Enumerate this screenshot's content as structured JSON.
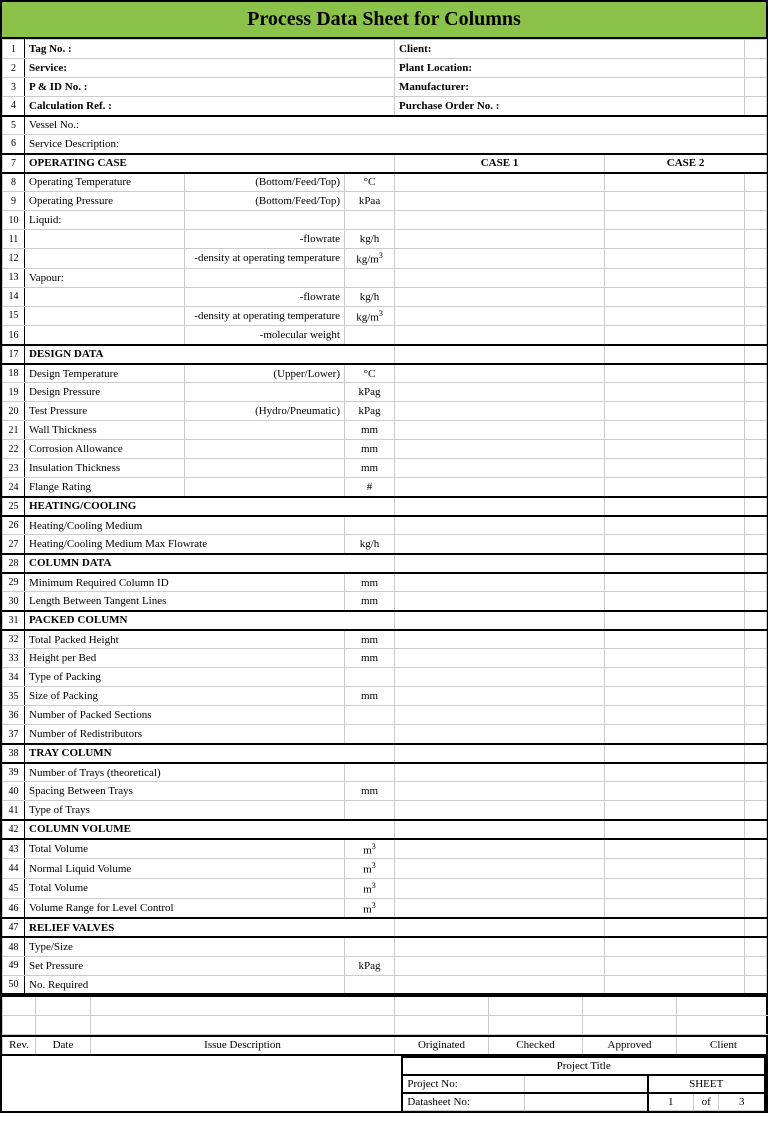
{
  "title": "Process Data Sheet for Columns",
  "colors": {
    "header_bg": "#8bc34a",
    "border": "#000000",
    "grid": "#cccccc"
  },
  "header_rows": [
    {
      "n": "1",
      "l": "Tag No. :",
      "r": "Client:"
    },
    {
      "n": "2",
      "l": "Service:",
      "r": "Plant Location:"
    },
    {
      "n": "3",
      "l": "P & ID No. :",
      "r": "Manufacturer:"
    },
    {
      "n": "4",
      "l": "Calculation Ref. :",
      "r": "Purchase Order No. :"
    }
  ],
  "row5": {
    "n": "5",
    "label": "Vessel No.:"
  },
  "row6": {
    "n": "6",
    "label": "Service Description:"
  },
  "op_case": {
    "n": "7",
    "label": "OPERATING CASE",
    "c1": "CASE 1",
    "c2": "CASE 2"
  },
  "op_rows": [
    {
      "n": "8",
      "label": "Operating Temperature",
      "qual": "(Bottom/Feed/Top)",
      "unit": "°C"
    },
    {
      "n": "9",
      "label": "Operating Pressure",
      "qual": "(Bottom/Feed/Top)",
      "unit": "kPaa"
    },
    {
      "n": "10",
      "label": "Liquid:",
      "qual": "",
      "unit": ""
    },
    {
      "n": "11",
      "label": "",
      "qual": "-flowrate",
      "unit": "kg/h"
    },
    {
      "n": "12",
      "label": "",
      "qual": "-density at operating temperature",
      "unit": "kg/m³"
    },
    {
      "n": "13",
      "label": "Vapour:",
      "qual": "",
      "unit": ""
    },
    {
      "n": "14",
      "label": "",
      "qual": "-flowrate",
      "unit": "kg/h"
    },
    {
      "n": "15",
      "label": "",
      "qual": "-density at operating temperature",
      "unit": "kg/m³"
    },
    {
      "n": "16",
      "label": "",
      "qual": "-molecular weight",
      "unit": ""
    }
  ],
  "design_hdr": {
    "n": "17",
    "label": "DESIGN DATA"
  },
  "design_rows": [
    {
      "n": "18",
      "label": "Design Temperature",
      "qual": "(Upper/Lower)",
      "unit": "°C"
    },
    {
      "n": "19",
      "label": "Design Pressure",
      "qual": "",
      "unit": "kPag"
    },
    {
      "n": "20",
      "label": "Test Pressure",
      "qual": "(Hydro/Pneumatic)",
      "unit": "kPag"
    },
    {
      "n": "21",
      "label": "Wall Thickness",
      "qual": "",
      "unit": "mm"
    },
    {
      "n": "22",
      "label": "Corrosion Allowance",
      "qual": "",
      "unit": "mm"
    },
    {
      "n": "23",
      "label": "Insulation Thickness",
      "qual": "",
      "unit": "mm"
    },
    {
      "n": "24",
      "label": "Flange Rating",
      "qual": "",
      "unit": "#"
    }
  ],
  "heat_hdr": {
    "n": "25",
    "label": "HEATING/COOLING"
  },
  "heat_rows": [
    {
      "n": "26",
      "label": "Heating/Cooling Medium",
      "unit": ""
    },
    {
      "n": "27",
      "label": "Heating/Cooling Medium Max Flowrate",
      "unit": "kg/h"
    }
  ],
  "col_hdr": {
    "n": "28",
    "label": "COLUMN DATA"
  },
  "col_rows": [
    {
      "n": "29",
      "label": "Minimum Required Column ID",
      "unit": "mm"
    },
    {
      "n": "30",
      "label": "Length Between Tangent Lines",
      "unit": "mm"
    }
  ],
  "pack_hdr": {
    "n": "31",
    "label": "PACKED COLUMN"
  },
  "pack_rows": [
    {
      "n": "32",
      "label": "Total Packed Height",
      "unit": "mm"
    },
    {
      "n": "33",
      "label": "Height per Bed",
      "unit": "mm"
    },
    {
      "n": "34",
      "label": "Type of Packing",
      "unit": ""
    },
    {
      "n": "35",
      "label": "Size of Packing",
      "unit": "mm"
    },
    {
      "n": "36",
      "label": "Number of Packed Sections",
      "unit": ""
    },
    {
      "n": "37",
      "label": "Number of Redistributors",
      "unit": ""
    }
  ],
  "tray_hdr": {
    "n": "38",
    "label": "TRAY COLUMN"
  },
  "tray_rows": [
    {
      "n": "39",
      "label": "Number of Trays (theoretical)",
      "unit": ""
    },
    {
      "n": "40",
      "label": "Spacing Between Trays",
      "unit": "mm"
    },
    {
      "n": "41",
      "label": "Type of Trays",
      "unit": ""
    }
  ],
  "vol_hdr": {
    "n": "42",
    "label": "COLUMN VOLUME"
  },
  "vol_rows": [
    {
      "n": "43",
      "label": "Total Volume",
      "unit": "m³"
    },
    {
      "n": "44",
      "label": "Normal Liquid Volume",
      "unit": "m³"
    },
    {
      "n": "45",
      "label": "Total Volume",
      "unit": "m³"
    },
    {
      "n": "46",
      "label": "Volume Range for Level Control",
      "unit": "m³"
    }
  ],
  "relief_hdr": {
    "n": "47",
    "label": "RELIEF VALVES"
  },
  "relief_rows": [
    {
      "n": "48",
      "label": "Type/Size",
      "unit": ""
    },
    {
      "n": "49",
      "label": "Set Pressure",
      "unit": "kPag"
    },
    {
      "n": "50",
      "label": "No. Required",
      "unit": ""
    }
  ],
  "rev_header": {
    "rev": "Rev.",
    "date": "Date",
    "issue": "Issue Description",
    "orig": "Originated",
    "check": "Checked",
    "appr": "Approved",
    "client": "Client"
  },
  "footer": {
    "project_title": "Project Title",
    "project_no": "Project No:",
    "datasheet_no": "Datasheet No:",
    "sheet": "SHEET",
    "page": "1",
    "of": "of",
    "total": "3"
  }
}
